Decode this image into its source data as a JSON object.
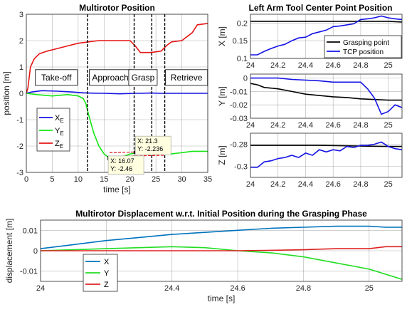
{
  "colors": {
    "x": "#1414e6",
    "y": "#14e614",
    "z": "#e61414",
    "black": "#000000",
    "dx": "#0072bd",
    "dy": "#22dd22",
    "dz": "#dd2222"
  },
  "chart_data": [
    {
      "id": "position",
      "type": "line",
      "title": "Multirotor Position",
      "xlabel": "time [s]",
      "ylabel": "position [m]",
      "xlim": [
        0,
        35
      ],
      "ylim": [
        -3,
        3
      ],
      "xticks": [
        0,
        5,
        10,
        15,
        20,
        25,
        30,
        35
      ],
      "yticks": [
        -3,
        -2,
        -1,
        0,
        1,
        2,
        3
      ],
      "grid": true,
      "legend_position": "middle-left",
      "phase_lines": [
        11.8,
        20.8,
        24.2,
        26.7
      ],
      "phases": [
        {
          "label": "Take-off",
          "x": 5.8,
          "y": 0.6
        },
        {
          "label": "Approach",
          "x": 16.2,
          "y": 0.6
        },
        {
          "label": "Grasp",
          "x": 22.5,
          "y": 0.6
        },
        {
          "label": "Retrieve",
          "x": 30.9,
          "y": 0.6
        }
      ],
      "series": [
        {
          "name": "X",
          "subscript": "E",
          "color_key": "x",
          "x": [
            0,
            1,
            3,
            6,
            9,
            11,
            12,
            15,
            18,
            21,
            22,
            24,
            26,
            28,
            30,
            32,
            35
          ],
          "y": [
            0,
            0.05,
            0.1,
            0.08,
            0.05,
            0.02,
            0.01,
            0.0,
            -0.02,
            0.0,
            0.0,
            0.01,
            0.0,
            0.0,
            0.0,
            0.0,
            0.0
          ]
        },
        {
          "name": "Y",
          "subscript": "E",
          "color_key": "y",
          "x": [
            0,
            2,
            5,
            8,
            10,
            11,
            11.5,
            12,
            13,
            14,
            15,
            16,
            17,
            18,
            20,
            22,
            24,
            26,
            28,
            30,
            32,
            35
          ],
          "y": [
            0,
            -0.05,
            -0.1,
            -0.05,
            -0.1,
            -0.2,
            -0.4,
            -0.8,
            -1.5,
            -2.0,
            -2.3,
            -2.45,
            -2.5,
            -2.45,
            -2.3,
            -2.25,
            -2.25,
            -2.3,
            -2.3,
            -2.25,
            -2.2,
            -2.2
          ]
        },
        {
          "name": "Z",
          "subscript": "E",
          "color_key": "z",
          "x": [
            0,
            0.3,
            0.8,
            1.5,
            2.5,
            4,
            6,
            8,
            10,
            12,
            14,
            16,
            18,
            20,
            21,
            22,
            24,
            26,
            27,
            28,
            30,
            32,
            33,
            35
          ],
          "y": [
            0,
            0.2,
            1.0,
            1.3,
            1.5,
            1.6,
            1.7,
            1.8,
            1.9,
            1.95,
            2.0,
            2.0,
            2.0,
            2.0,
            1.8,
            1.55,
            1.55,
            1.6,
            1.8,
            1.95,
            2.0,
            2.3,
            2.6,
            2.65
          ]
        }
      ],
      "dashed_lines": [
        {
          "color_key": "z",
          "x": [
            16.07,
            26.7
          ],
          "y": [
            -2.25,
            -2.2
          ]
        },
        {
          "color_key": "z",
          "x": [
            16.07,
            26.7
          ],
          "y": [
            -2.4,
            -2.35
          ]
        }
      ],
      "datatips": [
        {
          "x": 16.07,
          "y": -2.46,
          "line1": "X: 16.07",
          "line2": "Y: -2.46",
          "box_y": -2.7
        },
        {
          "x": 21.3,
          "y": -2.236,
          "line1": "X: 21.3",
          "line2": "Y: -2.236",
          "box_y": -1.95
        }
      ]
    },
    {
      "id": "tcp-x",
      "type": "line",
      "title": "Left Arm Tool Center Point Position",
      "ylabel": "X [m]",
      "xlim": [
        24,
        25.1
      ],
      "ylim": [
        0.1,
        0.225
      ],
      "xticks": [
        24,
        24.2,
        24.4,
        24.6,
        24.8,
        25
      ],
      "yticks": [
        0.1,
        0.15,
        0.2
      ],
      "ytick_labels": [
        "0.1",
        "0.15",
        "0.2"
      ],
      "grid": true,
      "legend_position": "bottom-right",
      "series": [
        {
          "name": "Grasping point",
          "color_key": "black",
          "x": [
            24,
            24.5,
            25,
            25.1
          ],
          "y": [
            0.205,
            0.205,
            0.205,
            0.203
          ]
        },
        {
          "name": "TCP position",
          "color_key": "x",
          "x": [
            24,
            24.05,
            24.1,
            24.15,
            24.2,
            24.25,
            24.3,
            24.35,
            24.4,
            24.45,
            24.5,
            24.55,
            24.6,
            24.65,
            24.7,
            24.75,
            24.8,
            24.85,
            24.9,
            24.95,
            25,
            25.05,
            25.1
          ],
          "y": [
            0.11,
            0.11,
            0.12,
            0.128,
            0.135,
            0.14,
            0.15,
            0.158,
            0.16,
            0.17,
            0.175,
            0.18,
            0.19,
            0.192,
            0.195,
            0.198,
            0.21,
            0.212,
            0.215,
            0.22,
            0.215,
            0.212,
            0.21
          ]
        }
      ]
    },
    {
      "id": "tcp-y",
      "type": "line",
      "ylabel": "Y [m]",
      "xlim": [
        24,
        25.1
      ],
      "ylim": [
        -0.03,
        0.003
      ],
      "xticks": [
        24,
        24.2,
        24.4,
        24.6,
        24.8,
        25
      ],
      "yticks": [
        -0.03,
        -0.02,
        -0.01,
        0
      ],
      "ytick_labels": [
        "-0.03",
        "-0.02",
        "-0.01",
        "0"
      ],
      "grid": true,
      "series": [
        {
          "name": "Grasping point",
          "color_key": "black",
          "x": [
            24,
            24.05,
            24.1,
            24.2,
            24.3,
            24.4,
            24.5,
            24.6,
            24.7,
            24.8,
            24.9,
            25,
            25.1
          ],
          "y": [
            -0.004,
            -0.005,
            -0.007,
            -0.008,
            -0.01,
            -0.012,
            -0.013,
            -0.014,
            -0.0145,
            -0.0155,
            -0.016,
            -0.0165,
            -0.0165
          ]
        },
        {
          "name": "TCP position",
          "color_key": "x",
          "x": [
            24,
            24.2,
            24.3,
            24.5,
            24.6,
            24.7,
            24.8,
            24.85,
            24.9,
            24.95,
            25,
            25.05,
            25.1
          ],
          "y": [
            0.0,
            0.0,
            -0.001,
            -0.002,
            -0.003,
            -0.003,
            -0.003,
            -0.008,
            -0.015,
            -0.027,
            -0.025,
            -0.02,
            -0.022
          ]
        }
      ]
    },
    {
      "id": "tcp-z",
      "type": "line",
      "ylabel": "Z [m]",
      "xlim": [
        24,
        25.1
      ],
      "ylim": [
        -0.31,
        -0.27
      ],
      "xticks": [
        24,
        24.2,
        24.4,
        24.6,
        24.8,
        25
      ],
      "yticks": [
        -0.3,
        -0.28
      ],
      "ytick_labels": [
        "-0.3",
        "-0.28"
      ],
      "grid": true,
      "series": [
        {
          "name": "Grasping point",
          "color_key": "black",
          "x": [
            24,
            24.5,
            25,
            25.1
          ],
          "y": [
            -0.281,
            -0.281,
            -0.282,
            -0.282
          ]
        },
        {
          "name": "TCP position",
          "color_key": "x",
          "x": [
            24,
            24.05,
            24.1,
            24.15,
            24.2,
            24.25,
            24.3,
            24.35,
            24.4,
            24.45,
            24.5,
            24.55,
            24.6,
            24.65,
            24.7,
            24.75,
            24.8,
            24.85,
            24.9,
            24.95,
            25,
            25.05,
            25.1
          ],
          "y": [
            -0.301,
            -0.301,
            -0.296,
            -0.295,
            -0.293,
            -0.292,
            -0.29,
            -0.292,
            -0.288,
            -0.29,
            -0.285,
            -0.287,
            -0.285,
            -0.286,
            -0.282,
            -0.283,
            -0.281,
            -0.281,
            -0.28,
            -0.278,
            -0.282,
            -0.284,
            -0.285
          ]
        }
      ]
    },
    {
      "id": "displacement",
      "type": "line",
      "title": "Multirotor Displacement w.r.t. Initial Position during the Grasping Phase",
      "xlabel": "time [s]",
      "ylabel": "displacement [m]",
      "xlim": [
        24,
        25.1
      ],
      "ylim": [
        -0.015,
        0.015
      ],
      "xticks": [
        24,
        24.2,
        24.4,
        24.6,
        24.8,
        25
      ],
      "yticks": [
        -0.01,
        0,
        0.01
      ],
      "ytick_labels": [
        "-0.01",
        "0",
        "0.01"
      ],
      "grid": true,
      "legend_position": "bottom-left",
      "series": [
        {
          "name": "X",
          "color_key": "dx",
          "x": [
            24,
            24.1,
            24.2,
            24.3,
            24.4,
            24.5,
            24.6,
            24.7,
            24.8,
            24.9,
            25,
            25.05,
            25.1
          ],
          "y": [
            0.001,
            0.003,
            0.005,
            0.0065,
            0.008,
            0.009,
            0.01,
            0.011,
            0.0115,
            0.012,
            0.012,
            0.0115,
            0.0115
          ]
        },
        {
          "name": "Y",
          "color_key": "dy",
          "x": [
            24,
            24.1,
            24.2,
            24.3,
            24.4,
            24.5,
            24.6,
            24.7,
            24.8,
            24.9,
            25,
            25.1
          ],
          "y": [
            0.0,
            0.0005,
            0.001,
            0.0015,
            0.002,
            0.0015,
            0.0,
            -0.001,
            -0.003,
            -0.006,
            -0.009,
            -0.014
          ]
        },
        {
          "name": "Z",
          "color_key": "dz",
          "x": [
            24,
            24.2,
            24.4,
            24.6,
            24.7,
            24.8,
            24.9,
            25,
            25.05,
            25.1
          ],
          "y": [
            0.0,
            0.0,
            0.0,
            0.0,
            0.0002,
            0.0005,
            0.001,
            0.001,
            0.002,
            0.002
          ]
        }
      ]
    }
  ]
}
